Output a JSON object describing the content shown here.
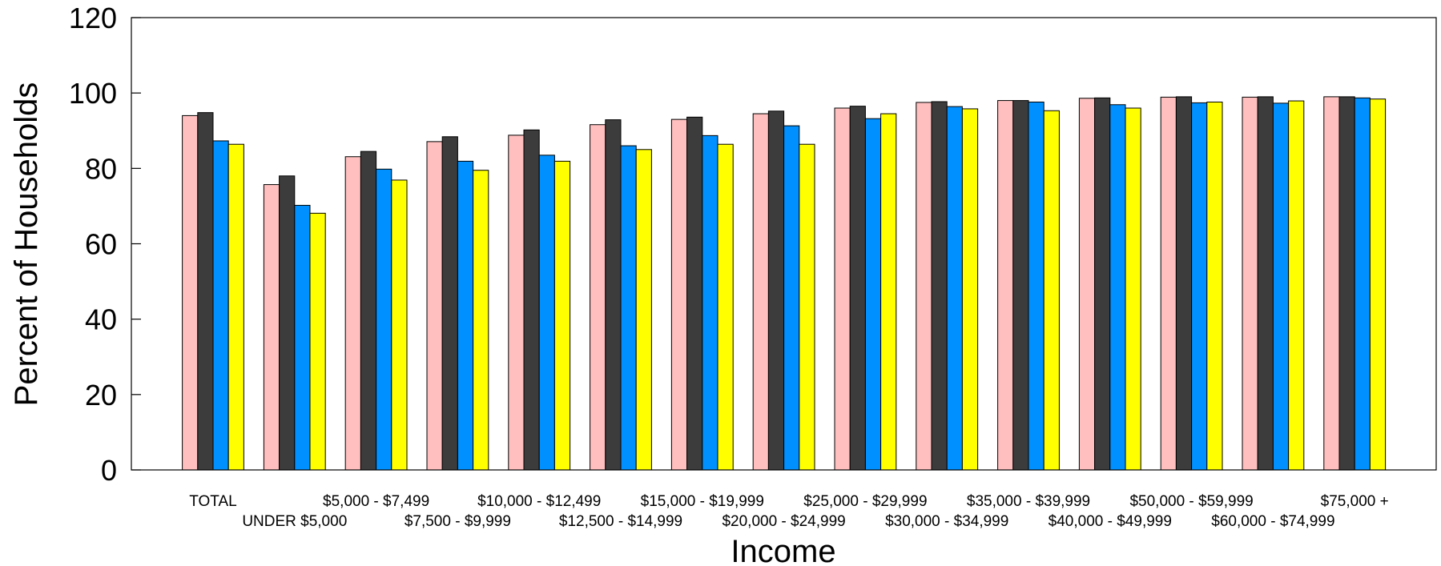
{
  "chart_data": {
    "type": "bar",
    "ylabel": "Percent of Households",
    "xlabel": "Income",
    "ylim": [
      0,
      120
    ],
    "yticks": [
      0,
      20,
      40,
      60,
      80,
      100,
      120
    ],
    "grid": false,
    "legend": "none",
    "categories": [
      "TOTAL",
      "UNDER $5,000",
      "$5,000 - $7,499",
      "$7,500 - $9,999",
      "$10,000 - $12,499",
      "$12,500 - $14,999",
      "$15,000 - $19,999",
      "$20,000 - $24,999",
      "$25,000 - $29,999",
      "$30,000 - $34,999",
      "$35,000 - $39,999",
      "$40,000 - $49,999",
      "$50,000 - $59,999",
      "$60,000 - $74,999",
      "$75,000 +"
    ],
    "series": [
      {
        "color": "#ffbfbf",
        "values": [
          94.0,
          75.7,
          83.1,
          87.1,
          88.8,
          91.6,
          93.0,
          94.5,
          96.0,
          97.5,
          98.0,
          98.6,
          98.9,
          98.9,
          99.0
        ]
      },
      {
        "color": "#3c3c3c",
        "values": [
          94.8,
          78.0,
          84.5,
          88.4,
          90.2,
          92.9,
          93.6,
          95.2,
          96.5,
          97.7,
          98.0,
          98.7,
          99.0,
          99.0,
          99.0
        ]
      },
      {
        "color": "#0090ff",
        "values": [
          87.3,
          70.2,
          79.8,
          81.9,
          83.5,
          86.0,
          88.7,
          91.3,
          93.2,
          96.4,
          97.6,
          96.9,
          97.4,
          97.3,
          98.7
        ]
      },
      {
        "color": "#ffff00",
        "values": [
          86.4,
          68.1,
          76.9,
          79.5,
          81.9,
          85.0,
          86.4,
          86.4,
          94.5,
          95.8,
          95.3,
          96.0,
          97.6,
          97.9,
          98.4
        ]
      }
    ]
  }
}
